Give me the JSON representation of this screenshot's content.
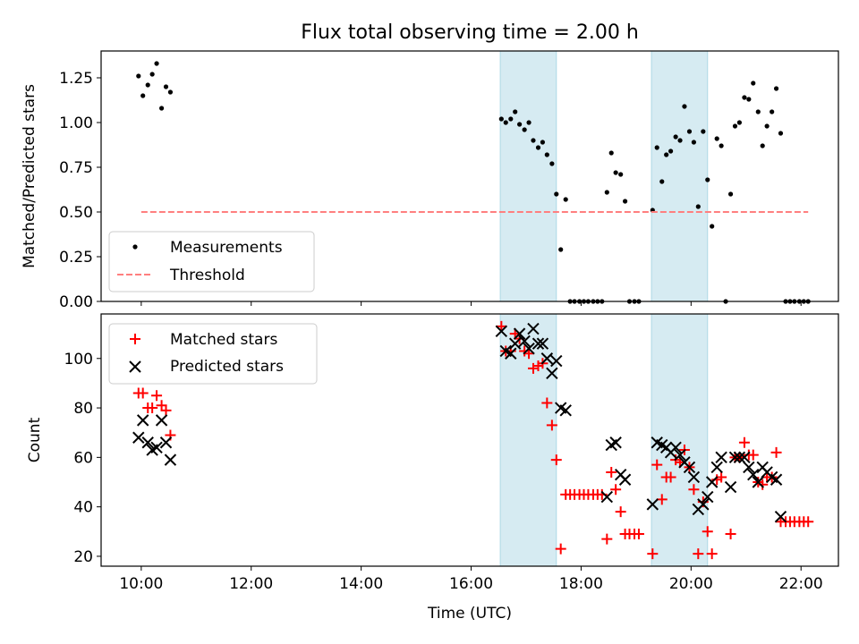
{
  "title": "Flux total observing time = 2.00 h",
  "xlabel": "Time (UTC)",
  "x_ticks": [
    {
      "value": 10,
      "label": "10:00"
    },
    {
      "value": 12,
      "label": "12:00"
    },
    {
      "value": 14,
      "label": "14:00"
    },
    {
      "value": 16,
      "label": "16:00"
    },
    {
      "value": 18,
      "label": "18:00"
    },
    {
      "value": 20,
      "label": "20:00"
    },
    {
      "value": 22,
      "label": "22:00"
    }
  ],
  "colors": {
    "measurements": "#000000",
    "threshold": "#ff7f7f",
    "matched": "#ff0000",
    "predicted": "#000000",
    "span": "#add8e6"
  },
  "chart_data": [
    {
      "type": "scatter",
      "ylabel": "Matched/Predicted stars",
      "xlim": [
        9.27,
        22.68
      ],
      "ylim": [
        0,
        1.4
      ],
      "y_ticks": [
        "0.00",
        "0.25",
        "0.50",
        "0.75",
        "1.00",
        "1.25"
      ],
      "y_tick_values": [
        0,
        0.25,
        0.5,
        0.75,
        1.0,
        1.25
      ],
      "shaded_spans": [
        [
          16.53,
          17.55
        ],
        [
          19.28,
          20.3
        ]
      ],
      "legend": {
        "position": "bottom-left",
        "entries": [
          "Measurements",
          "Threshold"
        ]
      },
      "series": [
        {
          "name": "Measurements",
          "kind": "points",
          "points": [
            [
              9.95,
              1.26
            ],
            [
              10.03,
              1.15
            ],
            [
              10.12,
              1.21
            ],
            [
              10.2,
              1.27
            ],
            [
              10.28,
              1.33
            ],
            [
              10.37,
              1.08
            ],
            [
              10.45,
              1.2
            ],
            [
              10.53,
              1.17
            ],
            [
              16.55,
              1.02
            ],
            [
              16.63,
              1.0
            ],
            [
              16.72,
              1.02
            ],
            [
              16.8,
              1.06
            ],
            [
              16.88,
              0.99
            ],
            [
              16.97,
              0.96
            ],
            [
              17.05,
              1.0
            ],
            [
              17.13,
              0.9
            ],
            [
              17.22,
              0.86
            ],
            [
              17.3,
              0.89
            ],
            [
              17.38,
              0.82
            ],
            [
              17.47,
              0.77
            ],
            [
              17.55,
              0.6
            ],
            [
              17.63,
              0.29
            ],
            [
              17.72,
              0.57
            ],
            [
              17.8,
              0
            ],
            [
              17.88,
              0
            ],
            [
              17.97,
              0
            ],
            [
              18.05,
              0
            ],
            [
              18.13,
              0
            ],
            [
              18.22,
              0
            ],
            [
              18.3,
              0
            ],
            [
              18.38,
              0
            ],
            [
              18.47,
              0.61
            ],
            [
              18.55,
              0.83
            ],
            [
              18.63,
              0.72
            ],
            [
              18.72,
              0.71
            ],
            [
              18.8,
              0.56
            ],
            [
              18.88,
              0
            ],
            [
              18.97,
              0
            ],
            [
              19.05,
              0
            ],
            [
              19.3,
              0.51
            ],
            [
              19.38,
              0.86
            ],
            [
              19.47,
              0.67
            ],
            [
              19.55,
              0.82
            ],
            [
              19.63,
              0.84
            ],
            [
              19.72,
              0.92
            ],
            [
              19.8,
              0.9
            ],
            [
              19.88,
              1.09
            ],
            [
              19.97,
              0.95
            ],
            [
              20.05,
              0.89
            ],
            [
              20.13,
              0.53
            ],
            [
              20.22,
              0.95
            ],
            [
              20.3,
              0.68
            ],
            [
              20.38,
              0.42
            ],
            [
              20.47,
              0.91
            ],
            [
              20.55,
              0.87
            ],
            [
              20.63,
              0
            ],
            [
              20.72,
              0.6
            ],
            [
              20.8,
              0.98
            ],
            [
              20.88,
              1.0
            ],
            [
              20.97,
              1.14
            ],
            [
              21.05,
              1.13
            ],
            [
              21.13,
              1.22
            ],
            [
              21.22,
              1.06
            ],
            [
              21.3,
              0.87
            ],
            [
              21.38,
              0.98
            ],
            [
              21.47,
              1.06
            ],
            [
              21.55,
              1.19
            ],
            [
              21.63,
              0.94
            ],
            [
              21.72,
              0
            ],
            [
              21.8,
              0
            ],
            [
              21.88,
              0
            ],
            [
              21.97,
              0
            ],
            [
              22.05,
              0
            ],
            [
              22.13,
              0
            ]
          ]
        },
        {
          "name": "Threshold",
          "kind": "line",
          "points": [
            [
              10.0,
              0.5
            ],
            [
              22.13,
              0.5
            ]
          ]
        }
      ]
    },
    {
      "type": "scatter",
      "ylabel": "Count",
      "xlim": [
        9.27,
        22.68
      ],
      "ylim": [
        16,
        118
      ],
      "y_ticks": [
        "20",
        "40",
        "60",
        "80",
        "100"
      ],
      "y_tick_values": [
        20,
        40,
        60,
        80,
        100
      ],
      "shaded_spans": [
        [
          16.53,
          17.55
        ],
        [
          19.28,
          20.3
        ]
      ],
      "legend": {
        "position": "top-left",
        "entries": [
          "Matched stars",
          "Predicted stars"
        ]
      },
      "series": [
        {
          "name": "Matched stars",
          "kind": "plus",
          "points": [
            [
              9.95,
              86
            ],
            [
              10.03,
              86
            ],
            [
              10.12,
              80
            ],
            [
              10.2,
              80
            ],
            [
              10.28,
              85
            ],
            [
              10.37,
              81
            ],
            [
              10.45,
              79
            ],
            [
              10.53,
              69
            ],
            [
              16.55,
              113
            ],
            [
              16.63,
              103
            ],
            [
              16.72,
              103
            ],
            [
              16.8,
              110
            ],
            [
              16.88,
              108
            ],
            [
              16.97,
              103
            ],
            [
              17.05,
              102
            ],
            [
              17.13,
              96
            ],
            [
              17.22,
              97
            ],
            [
              17.3,
              98
            ],
            [
              17.38,
              82
            ],
            [
              17.47,
              73
            ],
            [
              17.55,
              59
            ],
            [
              17.63,
              23
            ],
            [
              17.72,
              45
            ],
            [
              17.8,
              45
            ],
            [
              17.88,
              45
            ],
            [
              17.97,
              45
            ],
            [
              18.05,
              45
            ],
            [
              18.13,
              45
            ],
            [
              18.22,
              45
            ],
            [
              18.3,
              45
            ],
            [
              18.38,
              45
            ],
            [
              18.47,
              27
            ],
            [
              18.55,
              54
            ],
            [
              18.63,
              47
            ],
            [
              18.72,
              38
            ],
            [
              18.8,
              29
            ],
            [
              18.88,
              29
            ],
            [
              18.97,
              29
            ],
            [
              19.05,
              29
            ],
            [
              19.3,
              21
            ],
            [
              19.38,
              57
            ],
            [
              19.47,
              43
            ],
            [
              19.55,
              52
            ],
            [
              19.63,
              52
            ],
            [
              19.72,
              59
            ],
            [
              19.8,
              58
            ],
            [
              19.88,
              63
            ],
            [
              19.97,
              56
            ],
            [
              20.05,
              47
            ],
            [
              20.13,
              21
            ],
            [
              20.22,
              42
            ],
            [
              20.3,
              30
            ],
            [
              20.38,
              21
            ],
            [
              20.47,
              51
            ],
            [
              20.55,
              52
            ],
            [
              20.72,
              29
            ],
            [
              20.8,
              60
            ],
            [
              20.88,
              60
            ],
            [
              20.97,
              66
            ],
            [
              21.05,
              61
            ],
            [
              21.13,
              61
            ],
            [
              21.22,
              50
            ],
            [
              21.3,
              49
            ],
            [
              21.38,
              52
            ],
            [
              21.47,
              52
            ],
            [
              21.55,
              62
            ],
            [
              21.63,
              34
            ],
            [
              21.72,
              34
            ],
            [
              21.8,
              34
            ],
            [
              21.88,
              34
            ],
            [
              21.97,
              34
            ],
            [
              22.05,
              34
            ],
            [
              22.13,
              34
            ]
          ]
        },
        {
          "name": "Predicted stars",
          "kind": "cross",
          "points": [
            [
              9.95,
              68
            ],
            [
              10.03,
              75
            ],
            [
              10.12,
              66
            ],
            [
              10.2,
              63
            ],
            [
              10.28,
              64
            ],
            [
              10.37,
              75
            ],
            [
              10.45,
              66
            ],
            [
              10.53,
              59
            ],
            [
              16.55,
              111
            ],
            [
              16.63,
              103
            ],
            [
              16.72,
              102
            ],
            [
              16.8,
              106
            ],
            [
              16.88,
              110
            ],
            [
              16.97,
              107
            ],
            [
              17.05,
              104
            ],
            [
              17.13,
              112
            ],
            [
              17.22,
              106
            ],
            [
              17.3,
              106
            ],
            [
              17.38,
              100
            ],
            [
              17.47,
              94
            ],
            [
              17.55,
              99
            ],
            [
              17.63,
              80
            ],
            [
              17.72,
              79
            ],
            [
              18.47,
              44
            ],
            [
              18.55,
              65
            ],
            [
              18.63,
              66
            ],
            [
              18.72,
              53
            ],
            [
              18.8,
              51
            ],
            [
              19.3,
              41
            ],
            [
              19.38,
              66
            ],
            [
              19.47,
              65
            ],
            [
              19.55,
              64
            ],
            [
              19.63,
              62
            ],
            [
              19.72,
              64
            ],
            [
              19.8,
              61
            ],
            [
              19.88,
              58
            ],
            [
              19.97,
              56
            ],
            [
              20.05,
              52
            ],
            [
              20.13,
              39
            ],
            [
              20.22,
              41
            ],
            [
              20.3,
              44
            ],
            [
              20.38,
              50
            ],
            [
              20.47,
              56
            ],
            [
              20.55,
              60
            ],
            [
              20.72,
              48
            ],
            [
              20.8,
              60
            ],
            [
              20.88,
              60
            ],
            [
              20.97,
              60
            ],
            [
              21.05,
              56
            ],
            [
              21.13,
              53
            ],
            [
              21.22,
              50
            ],
            [
              21.3,
              56
            ],
            [
              21.38,
              54
            ],
            [
              21.47,
              52
            ],
            [
              21.55,
              51
            ],
            [
              21.63,
              36
            ]
          ]
        }
      ]
    }
  ]
}
